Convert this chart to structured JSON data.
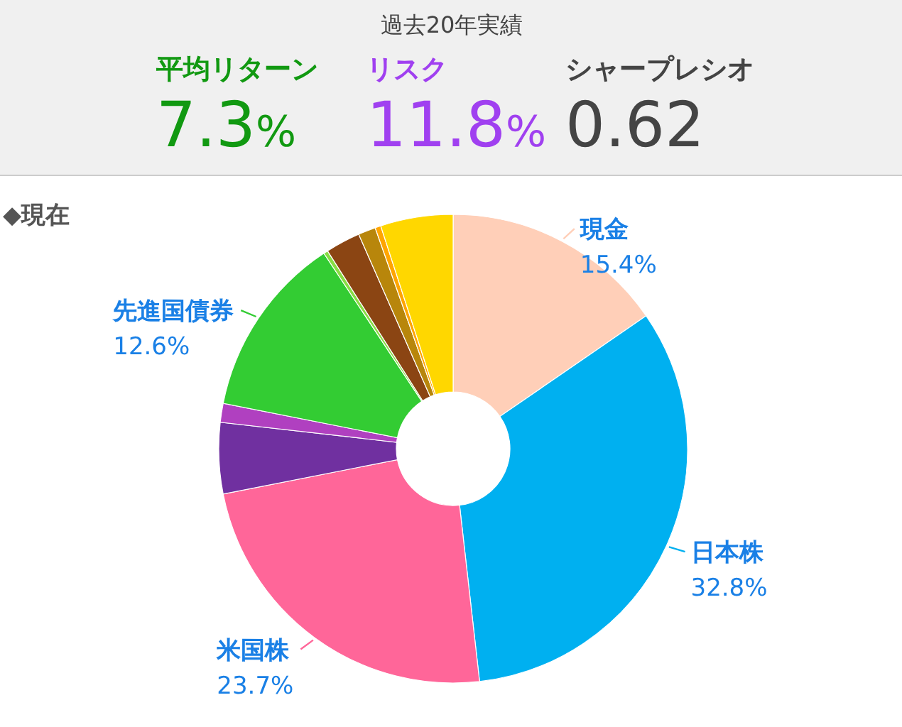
{
  "chart_data": [
    {
      "type": "other",
      "title": "過去20年実績",
      "annotations": [
        "平均リターン",
        "7.3%",
        "リスク",
        "11.8%",
        "シャープレシオ",
        "0.62"
      ],
      "colors": [
        "#119911",
        "#a040f0",
        "#444444"
      ]
    },
    {
      "type": "donut",
      "title": "◆現在",
      "categories": [
        "現金",
        "日本株",
        "米国株",
        null,
        null,
        "先進国債券",
        null,
        null,
        null,
        null,
        null
      ],
      "values": [
        15.4,
        32.8,
        23.7,
        4.9,
        1.3,
        12.6,
        0.3,
        2.4,
        1.2,
        0.4,
        5.0
      ],
      "value_labels": [
        "15.4%",
        "32.8%",
        "23.7%",
        null,
        null,
        "12.6%",
        null,
        null,
        null,
        null,
        null
      ],
      "colors": [
        "#ffcfb8",
        "#00b0f0",
        "#ff6699",
        "#7030a0",
        "#b040c0",
        "#33cc33",
        "#88dd44",
        "#8b4513",
        "#b8860b",
        "#ffa500",
        "#ffd700"
      ]
    }
  ]
}
